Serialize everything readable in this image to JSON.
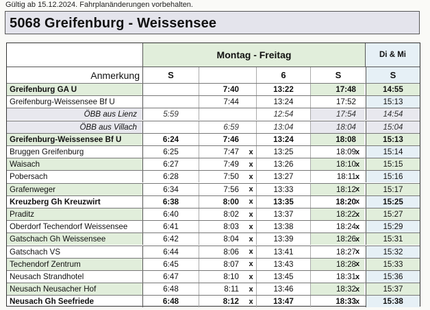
{
  "validity": "Gültig ab 15.12.2024. Fahrplanänderungen vorbehalten.",
  "title": "5068 Greifenburg - Weissensee",
  "headers": {
    "group_weekday": "Montag - Freitag",
    "group_tuewed": "Di & Mi",
    "anmerkung": "Anmerkung",
    "col_a": "S",
    "col_b": "",
    "col_c": "6",
    "col_d": "S",
    "col_e": "S"
  },
  "rows": [
    {
      "stop": "Greifenburg GA U",
      "bold": true,
      "style": "green",
      "a": "",
      "b": "7:40",
      "bx": "",
      "c": "13:22",
      "d": "17:48",
      "dx": "",
      "e": "14:55"
    },
    {
      "stop": "Greifenburg-Weissensee Bf U",
      "bold": false,
      "style": "white",
      "a": "",
      "b": "7:44",
      "bx": "",
      "c": "13:24",
      "d": "17:52",
      "dx": "",
      "e": "15:13"
    },
    {
      "stop": "ÖBB aus Lienz",
      "bold": false,
      "style": "gray",
      "a": "5:59",
      "b": "",
      "bx": "",
      "c": "12:54",
      "d": "17:54",
      "dx": "",
      "e": "14:54"
    },
    {
      "stop": "ÖBB aus Villach",
      "bold": false,
      "style": "gray",
      "a": "",
      "b": "6:59",
      "bx": "",
      "c": "13:04",
      "d": "18:04",
      "dx": "",
      "e": "15:04"
    },
    {
      "stop": "Greifenburg-Weissensee Bf U",
      "bold": true,
      "style": "green",
      "a": "6:24",
      "b": "7:46",
      "bx": "",
      "c": "13:24",
      "d": "18:08",
      "dx": "",
      "e": "15:13"
    },
    {
      "stop": "Bruggen Greifenburg",
      "bold": false,
      "style": "white",
      "a": "6:25",
      "b": "7:47",
      "bx": "x",
      "c": "13:25",
      "d": "18:09",
      "dx": "x",
      "e": "15:14"
    },
    {
      "stop": "Waisach",
      "bold": false,
      "style": "green",
      "a": "6:27",
      "b": "7:49",
      "bx": "x",
      "c": "13:26",
      "d": "18:10",
      "dx": "x",
      "e": "15:15"
    },
    {
      "stop": "Pobersach",
      "bold": false,
      "style": "white",
      "a": "6:28",
      "b": "7:50",
      "bx": "x",
      "c": "13:27",
      "d": "18:11",
      "dx": "x",
      "e": "15:16"
    },
    {
      "stop": "Grafenweger",
      "bold": false,
      "style": "green",
      "a": "6:34",
      "b": "7:56",
      "bx": "x",
      "c": "13:33",
      "d": "18:12",
      "dx": "x",
      "e": "15:17"
    },
    {
      "stop": "Kreuzberg Gh Kreuzwirt",
      "bold": true,
      "style": "white",
      "a": "6:38",
      "b": "8:00",
      "bx": "x",
      "c": "13:35",
      "d": "18:20",
      "dx": "x",
      "e": "15:25"
    },
    {
      "stop": "Praditz",
      "bold": false,
      "style": "green",
      "a": "6:40",
      "b": "8:02",
      "bx": "x",
      "c": "13:37",
      "d": "18:22",
      "dx": "x",
      "e": "15:27"
    },
    {
      "stop": "Oberdorf Techendorf Weissensee",
      "bold": false,
      "style": "white",
      "a": "6:41",
      "b": "8:03",
      "bx": "x",
      "c": "13:38",
      "d": "18:24",
      "dx": "x",
      "e": "15:29"
    },
    {
      "stop": "Gatschach Gh Weissensee",
      "bold": false,
      "style": "green",
      "a": "6:42",
      "b": "8:04",
      "bx": "x",
      "c": "13:39",
      "d": "18:26",
      "dx": "x",
      "e": "15:31"
    },
    {
      "stop": "Gatschach VS",
      "bold": false,
      "style": "white",
      "a": "6:44",
      "b": "8:06",
      "bx": "x",
      "c": "13:41",
      "d": "18:27",
      "dx": "x",
      "e": "15:32"
    },
    {
      "stop": "Techendorf Zentrum",
      "bold": false,
      "style": "green",
      "a": "6:45",
      "b": "8:07",
      "bx": "x",
      "c": "13:43",
      "d": "18:28",
      "dx": "x",
      "e": "15:33"
    },
    {
      "stop": "Neusach Strandhotel",
      "bold": false,
      "style": "white",
      "a": "6:47",
      "b": "8:10",
      "bx": "x",
      "c": "13:45",
      "d": "18:31",
      "dx": "x",
      "e": "15:36"
    },
    {
      "stop": "Neusach Neusacher Hof",
      "bold": false,
      "style": "green",
      "a": "6:48",
      "b": "8:11",
      "bx": "x",
      "c": "13:46",
      "d": "18:32",
      "dx": "x",
      "e": "15:37"
    },
    {
      "stop": "Neusach Gh Seefriede",
      "bold": true,
      "style": "white",
      "a": "6:48",
      "b": "8:12",
      "bx": "x",
      "c": "13:47",
      "d": "18:33",
      "dx": "x",
      "e": "15:38"
    }
  ]
}
